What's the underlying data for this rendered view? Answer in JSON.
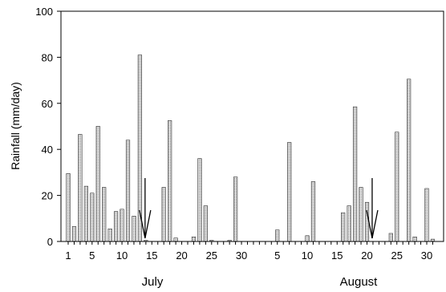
{
  "chart_data": {
    "type": "bar",
    "ylabel": "Rainfall (mm/day)",
    "ylim": [
      0,
      100
    ],
    "y_ticks": [
      "0",
      "20",
      "40",
      "60",
      "80",
      "100"
    ],
    "x_tick_labels": [
      "1",
      "5",
      "10",
      "15",
      "20",
      "25",
      "30",
      "5",
      "10",
      "15",
      "20",
      "25",
      "30"
    ],
    "months": [
      "July",
      "August"
    ],
    "categories": [
      "Jul 1",
      "Jul 2",
      "Jul 3",
      "Jul 4",
      "Jul 5",
      "Jul 6",
      "Jul 7",
      "Jul 8",
      "Jul 9",
      "Jul 10",
      "Jul 11",
      "Jul 12",
      "Jul 13",
      "Jul 14",
      "Jul 15",
      "Jul 16",
      "Jul 17",
      "Jul 18",
      "Jul 19",
      "Jul 20",
      "Jul 21",
      "Jul 22",
      "Jul 23",
      "Jul 24",
      "Jul 25",
      "Jul 26",
      "Jul 27",
      "Jul 28",
      "Jul 29",
      "Jul 30",
      "Jul 31",
      "Aug 1",
      "Aug 2",
      "Aug 3",
      "Aug 4",
      "Aug 5",
      "Aug 6",
      "Aug 7",
      "Aug 8",
      "Aug 9",
      "Aug 10",
      "Aug 11",
      "Aug 12",
      "Aug 13",
      "Aug 14",
      "Aug 15",
      "Aug 16",
      "Aug 17",
      "Aug 18",
      "Aug 19",
      "Aug 20",
      "Aug 21",
      "Aug 22",
      "Aug 23",
      "Aug 24",
      "Aug 25",
      "Aug 26",
      "Aug 27",
      "Aug 28",
      "Aug 29",
      "Aug 30",
      "Aug 31"
    ],
    "values": [
      29.5,
      6.5,
      46.5,
      24,
      21,
      50,
      23.5,
      5.5,
      13,
      14,
      44,
      11,
      81,
      0.5,
      0,
      0,
      23.5,
      52.5,
      1.5,
      0,
      0,
      2,
      36,
      15.5,
      0.5,
      0,
      0,
      0.5,
      28,
      0,
      0,
      0,
      0,
      0,
      0,
      5,
      0,
      43,
      0,
      0,
      2.5,
      26,
      0,
      0,
      0,
      0,
      12.5,
      15.5,
      58.5,
      23.5,
      17,
      0,
      0,
      0,
      3.5,
      47.5,
      0,
      70.5,
      2,
      0,
      23,
      1
    ],
    "bar_color": "#bdbdbd",
    "annotations": [
      {
        "type": "arrow",
        "day": "Jul 14"
      },
      {
        "type": "arrow",
        "day": "Aug 21"
      }
    ],
    "grid": false
  }
}
